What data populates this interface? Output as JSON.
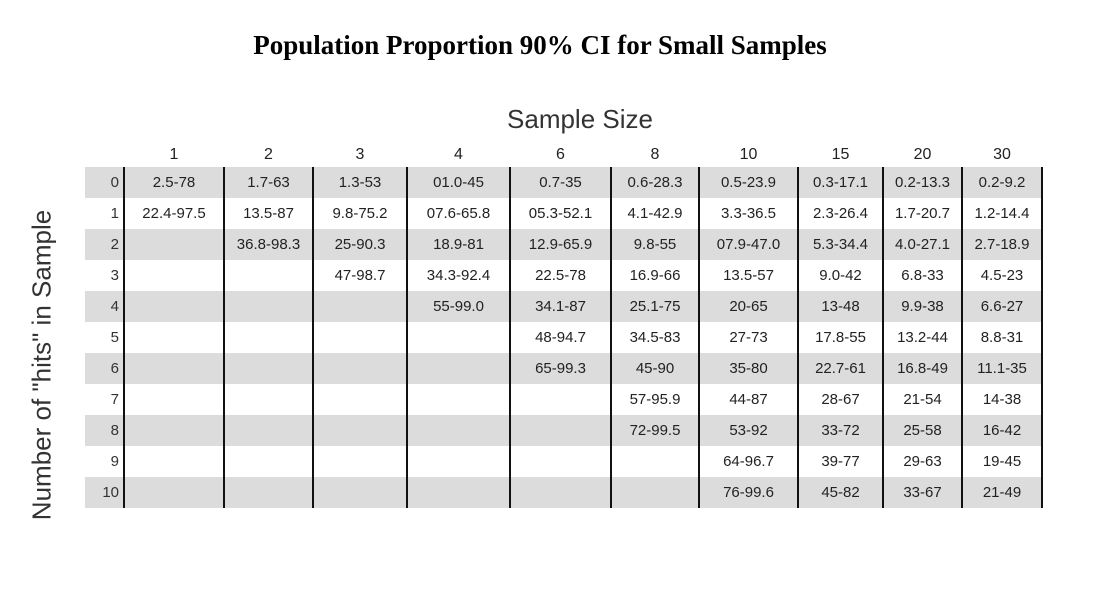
{
  "title": "Population Proportion 90% CI for Small Samples",
  "column_axis_label": "Sample Size",
  "row_axis_label": "Number of \"hits\" in Sample",
  "sample_sizes": [
    "1",
    "2",
    "3",
    "4",
    "6",
    "8",
    "10",
    "15",
    "20",
    "30"
  ],
  "rows": [
    {
      "hits": "0",
      "cells": [
        "2.5-78",
        "1.7-63",
        "1.3-53",
        "01.0-45",
        "0.7-35",
        "0.6-28.3",
        "0.5-23.9",
        "0.3-17.1",
        "0.2-13.3",
        "0.2-9.2"
      ]
    },
    {
      "hits": "1",
      "cells": [
        "22.4-97.5",
        "13.5-87",
        "9.8-75.2",
        "07.6-65.8",
        "05.3-52.1",
        "4.1-42.9",
        "3.3-36.5",
        "2.3-26.4",
        "1.7-20.7",
        "1.2-14.4"
      ]
    },
    {
      "hits": "2",
      "cells": [
        "",
        "36.8-98.3",
        "25-90.3",
        "18.9-81",
        "12.9-65.9",
        "9.8-55",
        "07.9-47.0",
        "5.3-34.4",
        "4.0-27.1",
        "2.7-18.9"
      ]
    },
    {
      "hits": "3",
      "cells": [
        "",
        "",
        "47-98.7",
        "34.3-92.4",
        "22.5-78",
        "16.9-66",
        "13.5-57",
        "9.0-42",
        "6.8-33",
        "4.5-23"
      ]
    },
    {
      "hits": "4",
      "cells": [
        "",
        "",
        "",
        "55-99.0",
        "34.1-87",
        "25.1-75",
        "20-65",
        "13-48",
        "9.9-38",
        "6.6-27"
      ]
    },
    {
      "hits": "5",
      "cells": [
        "",
        "",
        "",
        "",
        "48-94.7",
        "34.5-83",
        "27-73",
        "17.8-55",
        "13.2-44",
        "8.8-31"
      ]
    },
    {
      "hits": "6",
      "cells": [
        "",
        "",
        "",
        "",
        "65-99.3",
        "45-90",
        "35-80",
        "22.7-61",
        "16.8-49",
        "11.1-35"
      ]
    },
    {
      "hits": "7",
      "cells": [
        "",
        "",
        "",
        "",
        "",
        "57-95.9",
        "44-87",
        "28-67",
        "21-54",
        "14-38"
      ]
    },
    {
      "hits": "8",
      "cells": [
        "",
        "",
        "",
        "",
        "",
        "72-99.5",
        "53-92",
        "33-72",
        "25-58",
        "16-42"
      ]
    },
    {
      "hits": "9",
      "cells": [
        "",
        "",
        "",
        "",
        "",
        "",
        "64-96.7",
        "39-77",
        "29-63",
        "19-45"
      ]
    },
    {
      "hits": "10",
      "cells": [
        "",
        "",
        "",
        "",
        "",
        "",
        "76-99.6",
        "45-82",
        "33-67",
        "21-49"
      ]
    }
  ]
}
